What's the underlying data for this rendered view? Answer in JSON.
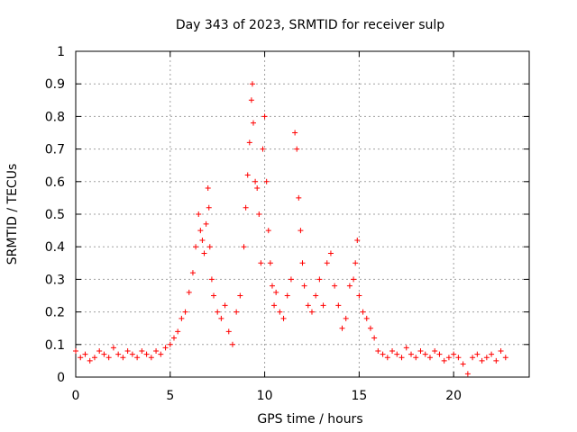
{
  "chart_data": {
    "type": "scatter",
    "title": "Day 343 of 2023, SRMTID for receiver sulp",
    "xlabel": "GPS time / hours",
    "ylabel": "SRMTID / TECUs",
    "xlim": [
      0,
      24
    ],
    "ylim": [
      0,
      1
    ],
    "xticks": [
      0,
      5,
      10,
      15,
      20
    ],
    "xtick_labels": [
      "0",
      "5",
      "10",
      "15",
      "20"
    ],
    "yticks": [
      0,
      0.1,
      0.2,
      0.3,
      0.4,
      0.5,
      0.6,
      0.7,
      0.8,
      0.9,
      1
    ],
    "ytick_labels": [
      "0",
      "0.1",
      "0.2",
      "0.3",
      "0.4",
      "0.5",
      "0.6",
      "0.7",
      "0.8",
      "0.9",
      "1"
    ],
    "grid": true,
    "marker": "+",
    "color": "#ff0000",
    "series": [
      {
        "name": "SRMTID",
        "x": [
          0.0,
          0.25,
          0.5,
          0.75,
          1.0,
          1.25,
          1.5,
          1.75,
          2.0,
          2.25,
          2.5,
          2.75,
          3.0,
          3.25,
          3.5,
          3.75,
          4.0,
          4.25,
          4.5,
          4.75,
          5.0,
          5.2,
          5.4,
          5.6,
          5.8,
          6.0,
          6.2,
          6.35,
          6.5,
          6.6,
          6.7,
          6.8,
          6.9,
          7.0,
          7.05,
          7.1,
          7.2,
          7.3,
          7.5,
          7.7,
          7.9,
          8.1,
          8.3,
          8.5,
          8.7,
          8.9,
          9.0,
          9.1,
          9.2,
          9.3,
          9.35,
          9.4,
          9.5,
          9.6,
          9.7,
          9.8,
          9.9,
          10.0,
          10.1,
          10.2,
          10.3,
          10.4,
          10.5,
          10.6,
          10.8,
          11.0,
          11.2,
          11.4,
          11.6,
          11.7,
          11.8,
          11.9,
          12.0,
          12.1,
          12.3,
          12.5,
          12.7,
          12.9,
          13.1,
          13.3,
          13.5,
          13.7,
          13.9,
          14.1,
          14.3,
          14.5,
          14.7,
          14.8,
          14.9,
          15.0,
          15.2,
          15.4,
          15.6,
          15.8,
          16.0,
          16.25,
          16.5,
          16.75,
          17.0,
          17.25,
          17.5,
          17.75,
          18.0,
          18.25,
          18.5,
          18.75,
          19.0,
          19.25,
          19.5,
          19.75,
          20.0,
          20.25,
          20.5,
          20.75,
          21.0,
          21.25,
          21.5,
          21.75,
          22.0,
          22.25,
          22.5,
          22.75
        ],
        "y": [
          0.08,
          0.06,
          0.07,
          0.05,
          0.06,
          0.08,
          0.07,
          0.06,
          0.09,
          0.07,
          0.06,
          0.08,
          0.07,
          0.06,
          0.08,
          0.07,
          0.06,
          0.08,
          0.07,
          0.09,
          0.1,
          0.12,
          0.14,
          0.18,
          0.2,
          0.26,
          0.32,
          0.4,
          0.5,
          0.45,
          0.42,
          0.38,
          0.47,
          0.58,
          0.52,
          0.4,
          0.3,
          0.25,
          0.2,
          0.18,
          0.22,
          0.14,
          0.1,
          0.2,
          0.25,
          0.4,
          0.52,
          0.62,
          0.72,
          0.85,
          0.9,
          0.78,
          0.6,
          0.58,
          0.5,
          0.35,
          0.7,
          0.8,
          0.6,
          0.45,
          0.35,
          0.28,
          0.22,
          0.26,
          0.2,
          0.18,
          0.25,
          0.3,
          0.75,
          0.7,
          0.55,
          0.45,
          0.35,
          0.28,
          0.22,
          0.2,
          0.25,
          0.3,
          0.22,
          0.35,
          0.38,
          0.28,
          0.22,
          0.15,
          0.18,
          0.28,
          0.3,
          0.35,
          0.42,
          0.25,
          0.2,
          0.18,
          0.15,
          0.12,
          0.08,
          0.07,
          0.06,
          0.08,
          0.07,
          0.06,
          0.09,
          0.07,
          0.06,
          0.08,
          0.07,
          0.06,
          0.08,
          0.07,
          0.05,
          0.06,
          0.07,
          0.06,
          0.04,
          0.01,
          0.06,
          0.07,
          0.05,
          0.06,
          0.07,
          0.05,
          0.08,
          0.06
        ]
      }
    ]
  }
}
